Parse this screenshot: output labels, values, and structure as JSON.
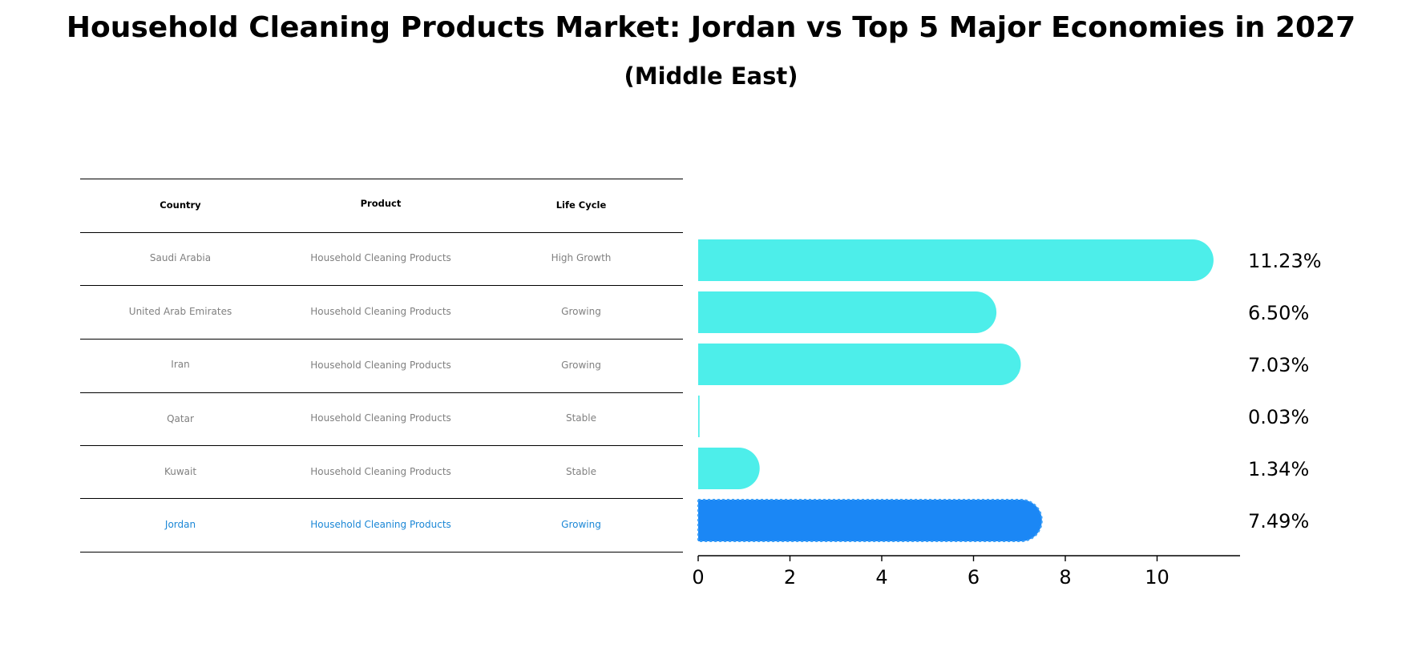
{
  "title": "Household Cleaning Products Market: Jordan vs Top 5 Major Economies in 2027",
  "subtitle": "(Middle East)",
  "table": {
    "headers": [
      "Country",
      "Product",
      "Life Cycle"
    ],
    "rows": [
      {
        "country": "Saudi Arabia",
        "product": "Household Cleaning Products",
        "life_cycle": "High Growth",
        "highlight": false
      },
      {
        "country": "United Arab Emirates",
        "product": "Household Cleaning Products",
        "life_cycle": "Growing",
        "highlight": false
      },
      {
        "country": "Iran",
        "product": "Household Cleaning Products",
        "life_cycle": "Growing",
        "highlight": false
      },
      {
        "country": "Qatar",
        "product": "Household Cleaning Products",
        "life_cycle": "Stable",
        "highlight": false
      },
      {
        "country": "Kuwait",
        "product": "Household Cleaning Products",
        "life_cycle": "Stable",
        "highlight": false
      },
      {
        "country": "Jordan",
        "product": "Household Cleaning Products",
        "life_cycle": "Growing",
        "highlight": true
      }
    ]
  },
  "colors": {
    "bar": "#4deeea",
    "highlight_bar": "#1b87f5",
    "highlight_text": "#1b87d6",
    "cell_text": "#808080"
  },
  "chart_data": {
    "type": "bar",
    "orientation": "horizontal",
    "categories": [
      "Saudi Arabia",
      "United Arab Emirates",
      "Iran",
      "Qatar",
      "Kuwait",
      "Jordan"
    ],
    "values": [
      11.23,
      6.5,
      7.03,
      0.03,
      1.34,
      7.49
    ],
    "value_labels": [
      "11.23%",
      "6.50%",
      "7.03%",
      "0.03%",
      "1.34%",
      "7.49%"
    ],
    "highlight": "Jordan",
    "xlim": [
      0,
      11.8
    ],
    "xticks": [
      0,
      2,
      4,
      6,
      8,
      10
    ],
    "xlabel": "",
    "ylabel": "",
    "grid": false
  }
}
